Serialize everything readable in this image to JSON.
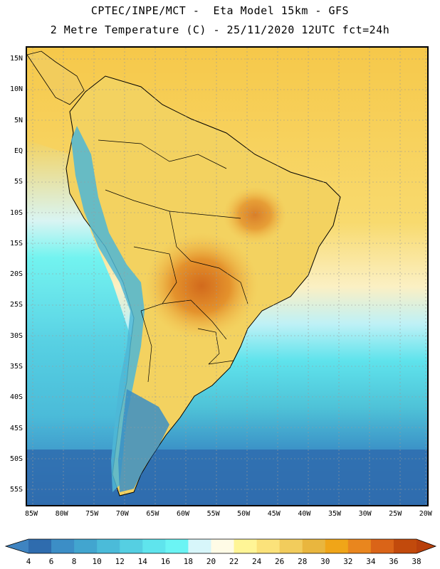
{
  "header": {
    "title_line1": "CPTEC/INPE/MCT -  Eta Model 15km - GFS",
    "title_line2": "2 Metre Temperature (C) - 25/11/2020 12UTC fct=24h"
  },
  "map": {
    "lat_labels": [
      "15N",
      "10N",
      "5N",
      "EQ",
      "5S",
      "10S",
      "15S",
      "20S",
      "25S",
      "30S",
      "35S",
      "40S",
      "45S",
      "50S",
      "55S"
    ],
    "lon_labels": [
      "85W",
      "80W",
      "75W",
      "70W",
      "65W",
      "60W",
      "55W",
      "50W",
      "45W",
      "40W",
      "35W",
      "30W",
      "25W",
      "20W"
    ],
    "colors": {
      "ocean_cold": "#2f6db0",
      "ocean_cool": "#3a8fc6",
      "ocean_mild": "#4fc3d8",
      "ocean_cyan": "#5fe3ec",
      "ocean_warm": "#fff9e0",
      "land_warm": "#f3d260",
      "land_hot": "#e89a2e",
      "land_hottest": "#d87322",
      "andes": "#4db7d6",
      "border": "#000000",
      "grid": "#9a9a9a"
    }
  },
  "colorbar": {
    "labels": [
      "4",
      "6",
      "8",
      "10",
      "12",
      "14",
      "16",
      "18",
      "20",
      "22",
      "24",
      "26",
      "28",
      "30",
      "32",
      "34",
      "36",
      "38"
    ],
    "colors": [
      "#3f84c1",
      "#2f6cae",
      "#3c8ec6",
      "#42a5cf",
      "#4bbbd9",
      "#55cfe2",
      "#5fe4ed",
      "#6bf4f4",
      "#d7f6fa",
      "#fffbe6",
      "#fff596",
      "#fbe27a",
      "#f2cc5c",
      "#e9b63e",
      "#f0a518",
      "#e9861e",
      "#da6418",
      "#c24a0c",
      "#b8400c"
    ]
  }
}
